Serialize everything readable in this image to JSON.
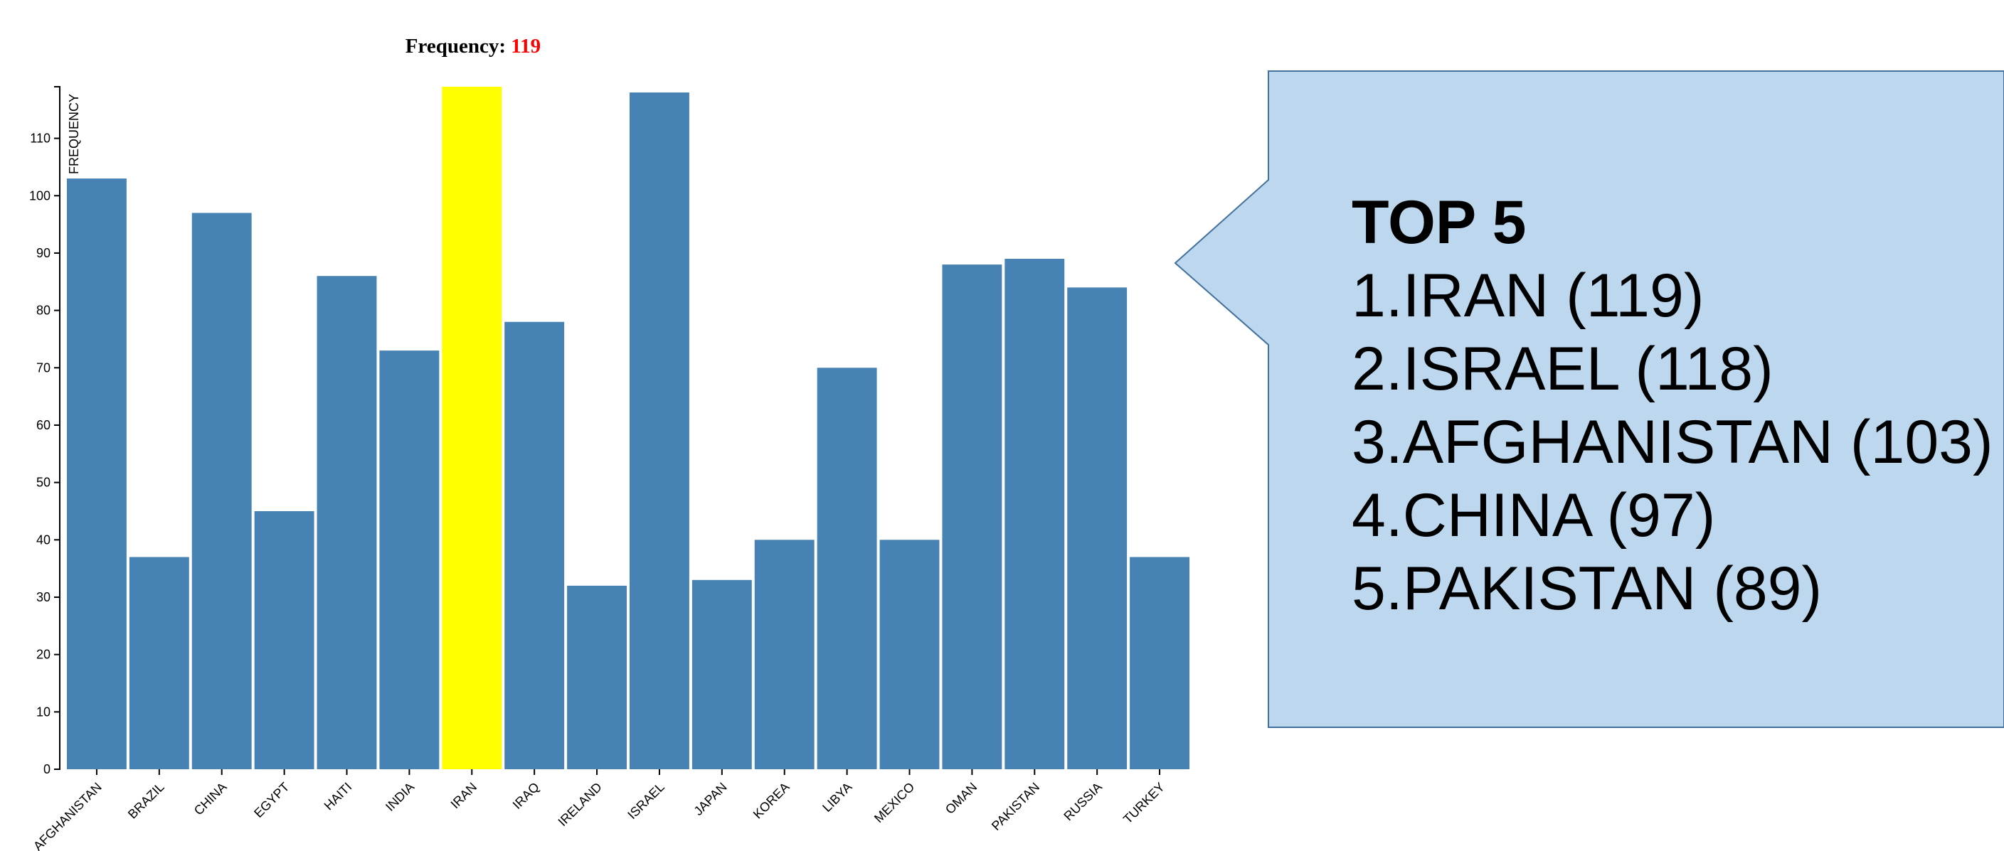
{
  "header": {
    "label": "Frequency: ",
    "value": "119"
  },
  "chart_data": {
    "type": "bar",
    "ylabel": "FREQUENCY",
    "ylim": [
      0,
      119
    ],
    "yticks": [
      0,
      10,
      20,
      30,
      40,
      50,
      60,
      70,
      80,
      90,
      100,
      110
    ],
    "categories": [
      "AFGHANISTAN",
      "BRAZIL",
      "CHINA",
      "EGYPT",
      "HAITI",
      "INDIA",
      "IRAN",
      "IRAQ",
      "IRELAND",
      "ISRAEL",
      "JAPAN",
      "KOREA",
      "LIBYA",
      "MEXICO",
      "OMAN",
      "PAKISTAN",
      "RUSSIA",
      "TURKEY"
    ],
    "values": [
      103,
      37,
      97,
      45,
      86,
      73,
      119,
      78,
      32,
      118,
      33,
      40,
      70,
      40,
      88,
      89,
      84,
      37
    ],
    "highlighted": "IRAN",
    "grid": false
  },
  "colors": {
    "bar": "#4682b4",
    "highlight": "#ffff00",
    "header_value": "#ff0000",
    "callout_fill": "#bdd7ee",
    "callout_stroke": "#41719c"
  },
  "callout": {
    "title": "TOP 5",
    "items": [
      "1.IRAN (119)",
      "2.ISRAEL (118)",
      "3.AFGHANISTAN (103)",
      "4.CHINA (97)",
      "5.PAKISTAN (89)"
    ]
  }
}
